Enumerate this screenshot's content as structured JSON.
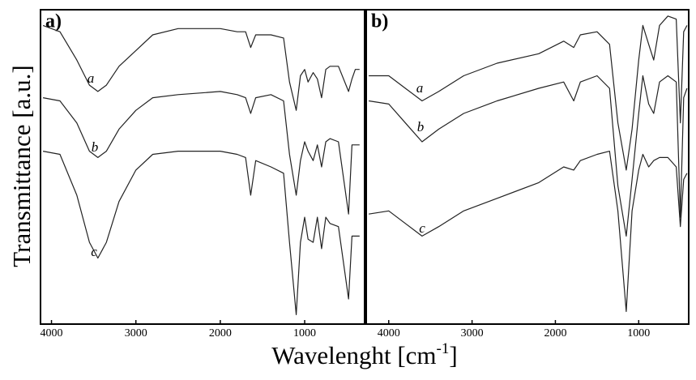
{
  "y_label": "Transmittance [a.u.]",
  "x_label_parts": [
    "Wavelenght [cm",
    "-1",
    "]"
  ],
  "chart_data": [
    {
      "type": "line",
      "panel_label": "a)",
      "xlim": [
        4130,
        290
      ],
      "ylim": [
        0,
        100
      ],
      "xticks": [
        4000,
        3000,
        2000,
        1000
      ],
      "color": "#222222",
      "x": [
        4100,
        3900,
        3700,
        3550,
        3450,
        3350,
        3200,
        3000,
        2800,
        2500,
        2000,
        1800,
        1700,
        1640,
        1580,
        1400,
        1250,
        1180,
        1100,
        1050,
        1000,
        960,
        900,
        850,
        800,
        750,
        700,
        600,
        480,
        440,
        400,
        350
      ],
      "series": [
        {
          "name": "a",
          "values": [
            95,
            93,
            84,
            76,
            74,
            76,
            82,
            87,
            92,
            94,
            94,
            93,
            93,
            88,
            92,
            92,
            91,
            77,
            68,
            79,
            81,
            77,
            80,
            78,
            72,
            81,
            82,
            82,
            74,
            78,
            81,
            81
          ]
        },
        {
          "name": "b",
          "values": [
            72,
            71,
            64,
            55,
            53,
            55,
            62,
            68,
            72,
            73,
            74,
            73,
            72,
            67,
            72,
            73,
            71,
            54,
            41,
            52,
            58,
            55,
            52,
            57,
            50,
            58,
            59,
            58,
            35,
            57,
            57,
            57
          ]
        },
        {
          "name": "c",
          "values": [
            55,
            54,
            41,
            26,
            21,
            26,
            39,
            49,
            54,
            55,
            55,
            54,
            53,
            41,
            52,
            50,
            48,
            26,
            3,
            26,
            34,
            27,
            26,
            34,
            24,
            34,
            32,
            31,
            8,
            28,
            28,
            28
          ]
        }
      ]
    },
    {
      "type": "line",
      "panel_label": "b)",
      "xlim": [
        4270,
        400
      ],
      "ylim": [
        0,
        100
      ],
      "xticks": [
        4000,
        3000,
        2000,
        1000
      ],
      "color": "#222222",
      "x": [
        4240,
        4000,
        3800,
        3600,
        3400,
        3100,
        2700,
        2200,
        1900,
        1780,
        1700,
        1500,
        1350,
        1250,
        1150,
        1080,
        1000,
        950,
        880,
        820,
        750,
        650,
        550,
        500,
        460,
        420
      ],
      "series": [
        {
          "name": "a",
          "values": [
            79,
            79,
            75,
            71,
            74,
            79,
            83,
            86,
            90,
            88,
            92,
            93,
            89,
            64,
            49,
            62,
            84,
            95,
            89,
            84,
            95,
            98,
            97,
            64,
            93,
            95
          ]
        },
        {
          "name": "b",
          "values": [
            71,
            70,
            64,
            58,
            62,
            67,
            71,
            75,
            77,
            71,
            77,
            79,
            75,
            44,
            28,
            46,
            67,
            79,
            70,
            67,
            77,
            79,
            77,
            34,
            72,
            75
          ]
        },
        {
          "name": "c",
          "values": [
            35,
            36,
            32,
            28,
            31,
            36,
            40,
            45,
            50,
            49,
            52,
            54,
            55,
            36,
            4,
            36,
            49,
            54,
            50,
            52,
            53,
            53,
            50,
            31,
            46,
            48
          ]
        }
      ]
    }
  ]
}
